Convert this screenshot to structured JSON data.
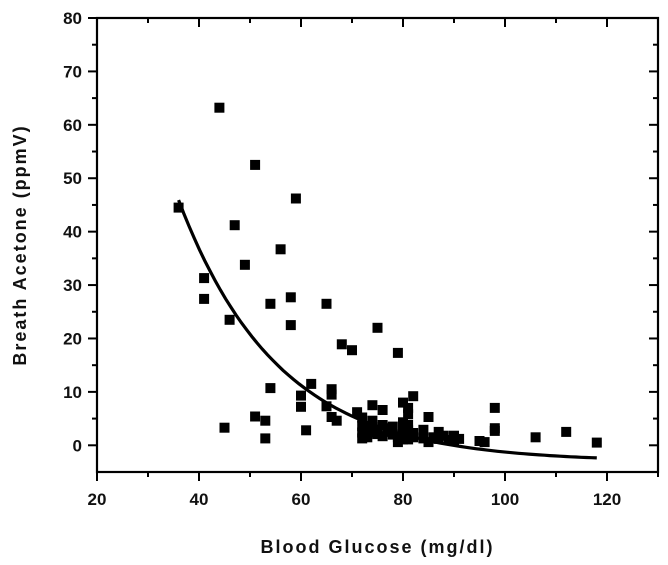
{
  "chart_data": {
    "type": "scatter",
    "xlabel": "Blood Glucose (mg/dl)",
    "ylabel": "Breath Acetone (ppmV)",
    "xlim": [
      20,
      130
    ],
    "ylim": [
      -5,
      80
    ],
    "xticks": [
      20,
      40,
      60,
      80,
      100,
      120
    ],
    "yticks": [
      0,
      10,
      20,
      30,
      40,
      50,
      60,
      70,
      80
    ],
    "grid": false,
    "marker_color": "#000000",
    "points": [
      [
        36,
        44.5
      ],
      [
        41,
        31.3
      ],
      [
        41,
        27.4
      ],
      [
        44,
        63.2
      ],
      [
        45,
        3.3
      ],
      [
        46,
        23.5
      ],
      [
        47,
        41.2
      ],
      [
        49,
        33.8
      ],
      [
        51,
        52.5
      ],
      [
        51,
        5.4
      ],
      [
        53,
        4.6
      ],
      [
        53,
        1.3
      ],
      [
        54,
        26.5
      ],
      [
        54,
        10.7
      ],
      [
        56,
        36.7
      ],
      [
        58,
        27.7
      ],
      [
        58,
        22.5
      ],
      [
        59,
        46.2
      ],
      [
        60,
        9.3
      ],
      [
        60,
        7.2
      ],
      [
        61,
        2.8
      ],
      [
        62,
        11.5
      ],
      [
        65,
        26.5
      ],
      [
        65,
        7.3
      ],
      [
        66,
        10.5
      ],
      [
        66,
        9.5
      ],
      [
        66,
        5.3
      ],
      [
        67,
        4.6
      ],
      [
        68,
        18.9
      ],
      [
        70,
        17.8
      ],
      [
        71,
        6.2
      ],
      [
        72,
        5.2
      ],
      [
        72,
        3.6
      ],
      [
        72,
        2.4
      ],
      [
        72,
        1.3
      ],
      [
        73,
        3.3
      ],
      [
        73,
        2.1
      ],
      [
        73,
        1.5
      ],
      [
        74,
        7.5
      ],
      [
        74,
        4.6
      ],
      [
        74,
        3.4
      ],
      [
        74,
        2.4
      ],
      [
        75,
        22.0
      ],
      [
        75,
        2.9
      ],
      [
        75,
        2.1
      ],
      [
        76,
        6.6
      ],
      [
        76,
        3.8
      ],
      [
        76,
        1.7
      ],
      [
        77,
        3.2
      ],
      [
        77,
        2.5
      ],
      [
        78,
        3.5
      ],
      [
        78,
        2.0
      ],
      [
        79,
        17.3
      ],
      [
        79,
        1.5
      ],
      [
        79,
        0.6
      ],
      [
        80,
        8.0
      ],
      [
        80,
        4.3
      ],
      [
        80,
        3.1
      ],
      [
        80,
        1.1
      ],
      [
        81,
        7.0
      ],
      [
        81,
        5.8
      ],
      [
        81,
        3.8
      ],
      [
        81,
        2.8
      ],
      [
        81,
        1.1
      ],
      [
        82,
        9.2
      ],
      [
        82,
        2.3
      ],
      [
        82,
        1.5
      ],
      [
        84,
        2.9
      ],
      [
        84,
        1.3
      ],
      [
        85,
        5.3
      ],
      [
        85,
        0.6
      ],
      [
        86,
        1.5
      ],
      [
        87,
        2.5
      ],
      [
        87,
        1.2
      ],
      [
        88,
        1.8
      ],
      [
        89,
        1.0
      ],
      [
        90,
        1.8
      ],
      [
        90,
        0.8
      ],
      [
        91,
        1.2
      ],
      [
        95,
        0.8
      ],
      [
        96,
        0.6
      ],
      [
        98,
        7.0
      ],
      [
        98,
        3.2
      ],
      [
        98,
        2.7
      ],
      [
        106,
        1.5
      ],
      [
        112,
        2.5
      ],
      [
        118,
        0.5
      ]
    ],
    "fit_curve": {
      "type": "exponential",
      "x_range": [
        36,
        118
      ],
      "y0": -3.1,
      "A": 49.0,
      "x0": 36,
      "t": 19.5
    }
  }
}
